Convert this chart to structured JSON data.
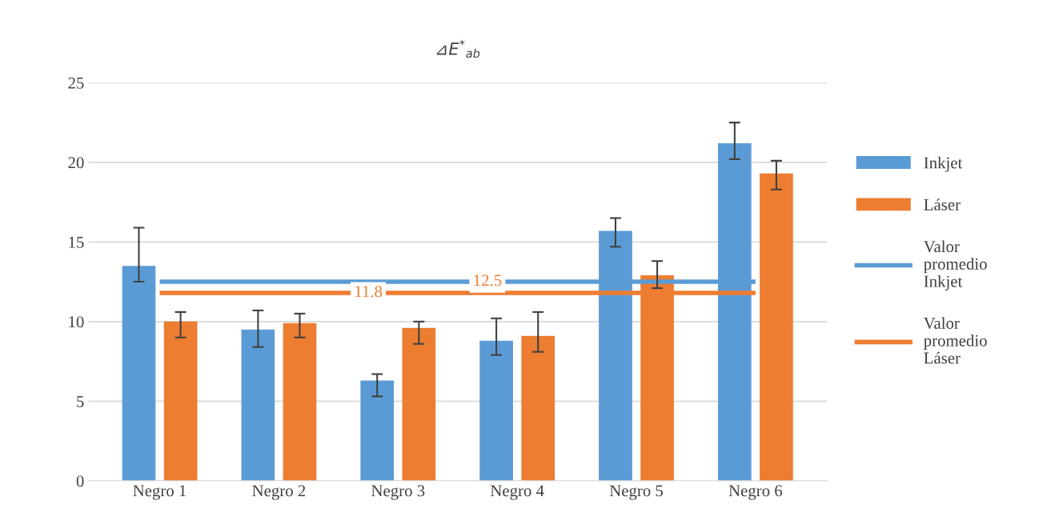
{
  "chart_data": {
    "type": "bar",
    "title": "⊿E$^{*}$$_{ab}$",
    "categories": [
      "Negro 1",
      "Negro 2",
      "Negro 3",
      "Negro 4",
      "Negro 5",
      "Negro 6"
    ],
    "series": [
      {
        "name": "Inkjet",
        "color": "#5b9bd5",
        "values": [
          13.5,
          9.5,
          6.3,
          8.8,
          15.7,
          21.2
        ],
        "errors": [
          [
            12.5,
            15.9
          ],
          [
            8.4,
            10.7
          ],
          [
            5.3,
            6.7
          ],
          [
            7.9,
            10.2
          ],
          [
            14.7,
            16.5
          ],
          [
            20.2,
            22.5
          ]
        ]
      },
      {
        "name": "Láser",
        "color": "#ed7d31",
        "values": [
          10.0,
          9.9,
          9.6,
          9.1,
          12.9,
          19.3
        ],
        "errors": [
          [
            9.0,
            10.6
          ],
          [
            9.0,
            10.5
          ],
          [
            8.6,
            10.0
          ],
          [
            8.1,
            10.6
          ],
          [
            12.1,
            13.8
          ],
          [
            18.3,
            20.1
          ]
        ]
      },
      {
        "name": "Valor promedio Inkjet",
        "type": "line",
        "color": "#5b9bd5",
        "values": [
          12.5,
          12.5,
          12.5,
          12.5,
          12.5,
          12.5
        ],
        "value_labels": [
          null,
          null,
          null,
          "12.5",
          null,
          null
        ]
      },
      {
        "name": "Valor promedio Láser",
        "type": "line",
        "color": "#ed7d31",
        "values": [
          11.8,
          11.8,
          11.8,
          11.8,
          11.8,
          11.8
        ],
        "value_labels": [
          null,
          null,
          "11.8",
          null,
          null,
          null
        ]
      }
    ],
    "ylim": [
      0,
      25
    ],
    "yticks": [
      0,
      5,
      10,
      15,
      20,
      25
    ],
    "grid": "y",
    "legend": "right"
  }
}
